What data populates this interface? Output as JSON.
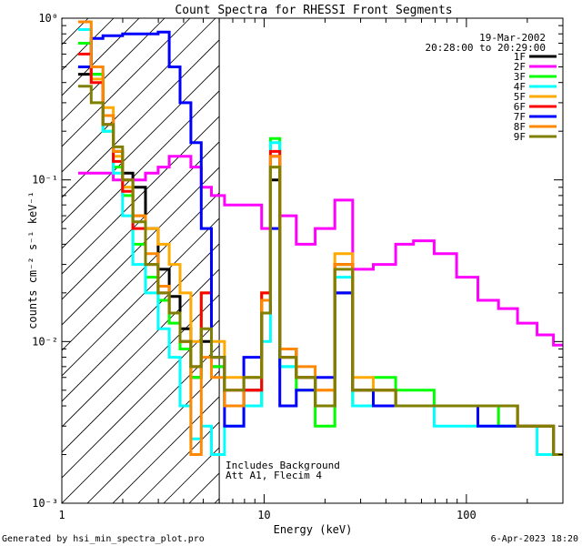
{
  "chart_data": {
    "type": "line",
    "title": "Count Spectra for RHESSI Front Segments",
    "xlabel": "Energy (keV)",
    "ylabel": "counts cm⁻² s⁻¹ keV⁻¹",
    "x_scale": "log",
    "y_scale": "log",
    "xlim": [
      1,
      300
    ],
    "ylim": [
      0.001,
      1
    ],
    "x_ticks": [
      {
        "value": 1,
        "label": "1"
      },
      {
        "value": 10,
        "label": "10"
      },
      {
        "value": 100,
        "label": "100"
      }
    ],
    "y_ticks": [
      {
        "value": 1,
        "label": "10⁰"
      },
      {
        "value": 0.1,
        "label": "10⁻¹"
      },
      {
        "value": 0.01,
        "label": "10⁻²"
      },
      {
        "value": 0.001,
        "label": "10⁻³"
      }
    ],
    "date": "19-Mar-2002",
    "time_range": "20:28:00 to 20:29:00",
    "hatched_region": [
      1,
      6
    ],
    "annotations": [
      "Includes Background",
      "Att A1, Flecim 4"
    ],
    "legend_position": "top-right",
    "series": [
      {
        "name": "1F",
        "color": "#000000",
        "x": [
          1.3,
          1.5,
          1.7,
          1.9,
          2.1,
          2.4,
          2.8,
          3.2,
          3.6,
          4.1,
          4.6,
          5.2,
          5.8,
          7,
          9,
          10.5,
          11,
          13,
          16,
          20,
          25,
          30,
          40,
          50,
          60,
          80,
          100,
          130,
          160,
          200,
          250,
          290
        ],
        "values": [
          0.45,
          0.45,
          0.25,
          0.15,
          0.11,
          0.09,
          0.05,
          0.028,
          0.019,
          0.012,
          0.006,
          0.01,
          0.007,
          0.004,
          0.005,
          0.015,
          0.1,
          0.009,
          0.006,
          0.004,
          0.02,
          0.005,
          0.005,
          0.004,
          0.004,
          0.004,
          0.004,
          0.004,
          0.004,
          0.003,
          0.003,
          0.002
        ]
      },
      {
        "name": "2F",
        "color": "#ff00ff",
        "x": [
          1.3,
          1.5,
          1.7,
          1.9,
          2.1,
          2.4,
          2.8,
          3.2,
          3.6,
          4.1,
          4.6,
          5.2,
          5.8,
          7,
          9,
          10.5,
          11,
          13,
          16,
          20,
          25,
          30,
          40,
          50,
          60,
          80,
          100,
          130,
          160,
          200,
          250,
          290
        ],
        "values": [
          0.11,
          0.11,
          0.11,
          0.1,
          0.1,
          0.1,
          0.11,
          0.12,
          0.14,
          0.14,
          0.12,
          0.09,
          0.08,
          0.07,
          0.07,
          0.05,
          0.14,
          0.06,
          0.04,
          0.05,
          0.075,
          0.028,
          0.03,
          0.04,
          0.042,
          0.035,
          0.025,
          0.018,
          0.016,
          0.013,
          0.011,
          0.0095
        ]
      },
      {
        "name": "3F",
        "color": "#00ff00",
        "x": [
          1.3,
          1.5,
          1.7,
          1.9,
          2.1,
          2.4,
          2.8,
          3.2,
          3.6,
          4.1,
          4.6,
          5.2,
          5.8,
          7,
          9,
          10.5,
          11,
          13,
          16,
          20,
          25,
          30,
          40,
          50,
          60,
          80,
          100,
          130,
          160,
          200,
          250,
          290
        ],
        "values": [
          0.7,
          0.45,
          0.2,
          0.12,
          0.08,
          0.04,
          0.025,
          0.018,
          0.013,
          0.009,
          0.006,
          0.02,
          0.007,
          0.004,
          0.004,
          0.02,
          0.18,
          0.007,
          0.005,
          0.003,
          0.03,
          0.004,
          0.006,
          0.005,
          0.005,
          0.004,
          0.004,
          0.004,
          0.003,
          0.003,
          0.003,
          0.002
        ]
      },
      {
        "name": "4F",
        "color": "#00ffff",
        "x": [
          1.3,
          1.5,
          1.7,
          1.9,
          2.1,
          2.4,
          2.8,
          3.2,
          3.6,
          4.1,
          4.6,
          5.2,
          5.8,
          7,
          9,
          10.5,
          11,
          13,
          16,
          20,
          25,
          30,
          40,
          50,
          60,
          80,
          100,
          130,
          160,
          200,
          250,
          290
        ],
        "values": [
          0.85,
          0.5,
          0.2,
          0.11,
          0.06,
          0.03,
          0.02,
          0.012,
          0.008,
          0.004,
          0.0025,
          0.003,
          0.002,
          0.003,
          0.004,
          0.01,
          0.17,
          0.007,
          0.006,
          0.004,
          0.025,
          0.004,
          0.004,
          0.004,
          0.004,
          0.003,
          0.003,
          0.003,
          0.003,
          0.003,
          0.002,
          0.002
        ]
      },
      {
        "name": "5F",
        "color": "#ffaa00",
        "x": [
          1.3,
          1.5,
          1.7,
          1.9,
          2.1,
          2.4,
          2.8,
          3.2,
          3.6,
          4.1,
          4.6,
          5.2,
          5.8,
          7,
          9,
          10.5,
          11,
          13,
          16,
          20,
          25,
          30,
          40,
          50,
          60,
          80,
          100,
          130,
          160,
          200,
          250,
          290
        ],
        "values": [
          0.5,
          0.42,
          0.28,
          0.14,
          0.09,
          0.06,
          0.05,
          0.04,
          0.03,
          0.02,
          0.01,
          0.02,
          0.01,
          0.006,
          0.006,
          0.02,
          0.12,
          0.008,
          0.006,
          0.005,
          0.035,
          0.006,
          0.005,
          0.004,
          0.004,
          0.004,
          0.004,
          0.004,
          0.004,
          0.003,
          0.003,
          0.002
        ]
      },
      {
        "name": "6F",
        "color": "#ff0000",
        "x": [
          1.3,
          1.5,
          1.7,
          1.9,
          2.1,
          2.4,
          2.8,
          3.2,
          3.6,
          4.1,
          4.6,
          5.2,
          5.8,
          7,
          9,
          10.5,
          11,
          13,
          16,
          20,
          25,
          30,
          40,
          50,
          60,
          80,
          100,
          130,
          160,
          200,
          250,
          290
        ],
        "values": [
          0.6,
          0.4,
          0.22,
          0.13,
          0.085,
          0.05,
          0.03,
          0.02,
          0.015,
          0.01,
          0.007,
          0.02,
          0.008,
          0.005,
          0.005,
          0.02,
          0.15,
          0.008,
          0.006,
          0.004,
          0.03,
          0.005,
          0.005,
          0.004,
          0.004,
          0.004,
          0.004,
          0.004,
          0.004,
          0.003,
          0.003,
          0.002
        ]
      },
      {
        "name": "7F",
        "color": "#0000ff",
        "x": [
          1.3,
          1.5,
          1.7,
          1.9,
          2.1,
          2.4,
          2.8,
          3.2,
          3.6,
          4.1,
          4.6,
          5.2,
          5.8,
          7,
          9,
          10.5,
          11,
          13,
          16,
          20,
          25,
          30,
          40,
          50,
          60,
          80,
          100,
          130,
          160,
          200,
          250,
          290
        ],
        "values": [
          0.5,
          0.75,
          0.78,
          0.78,
          0.8,
          0.8,
          0.8,
          0.82,
          0.5,
          0.3,
          0.17,
          0.05,
          0.008,
          0.003,
          0.008,
          0.015,
          0.05,
          0.004,
          0.005,
          0.006,
          0.02,
          0.005,
          0.004,
          0.004,
          0.004,
          0.004,
          0.004,
          0.003,
          0.003,
          0.003,
          0.003,
          0.002
        ]
      },
      {
        "name": "8F",
        "color": "#ff8800",
        "x": [
          1.3,
          1.5,
          1.7,
          1.9,
          2.1,
          2.4,
          2.8,
          3.2,
          3.6,
          4.1,
          4.6,
          5.2,
          5.8,
          7,
          9,
          10.5,
          11,
          13,
          16,
          20,
          25,
          30,
          40,
          50,
          60,
          80,
          100,
          130,
          160,
          200,
          250,
          290
        ],
        "values": [
          0.95,
          0.5,
          0.25,
          0.15,
          0.1,
          0.06,
          0.035,
          0.022,
          0.015,
          0.01,
          0.002,
          0.008,
          0.006,
          0.004,
          0.006,
          0.018,
          0.14,
          0.009,
          0.007,
          0.005,
          0.03,
          0.005,
          0.005,
          0.004,
          0.004,
          0.004,
          0.004,
          0.004,
          0.004,
          0.003,
          0.003,
          0.002
        ]
      },
      {
        "name": "9F",
        "color": "#808000",
        "x": [
          1.3,
          1.5,
          1.7,
          1.9,
          2.1,
          2.4,
          2.8,
          3.2,
          3.6,
          4.1,
          4.6,
          5.2,
          5.8,
          7,
          9,
          10.5,
          11,
          13,
          16,
          20,
          25,
          30,
          40,
          50,
          60,
          80,
          100,
          130,
          160,
          200,
          250,
          290
        ],
        "values": [
          0.38,
          0.3,
          0.22,
          0.16,
          0.1,
          0.055,
          0.03,
          0.02,
          0.015,
          0.01,
          0.007,
          0.012,
          0.008,
          0.005,
          0.006,
          0.015,
          0.12,
          0.008,
          0.006,
          0.004,
          0.028,
          0.005,
          0.005,
          0.004,
          0.004,
          0.004,
          0.004,
          0.004,
          0.004,
          0.003,
          0.003,
          0.002
        ]
      }
    ]
  },
  "footer": {
    "generated_by": "Generated by hsi_min_spectra_plot.pro",
    "timestamp": "6-Apr-2023 18:20"
  }
}
